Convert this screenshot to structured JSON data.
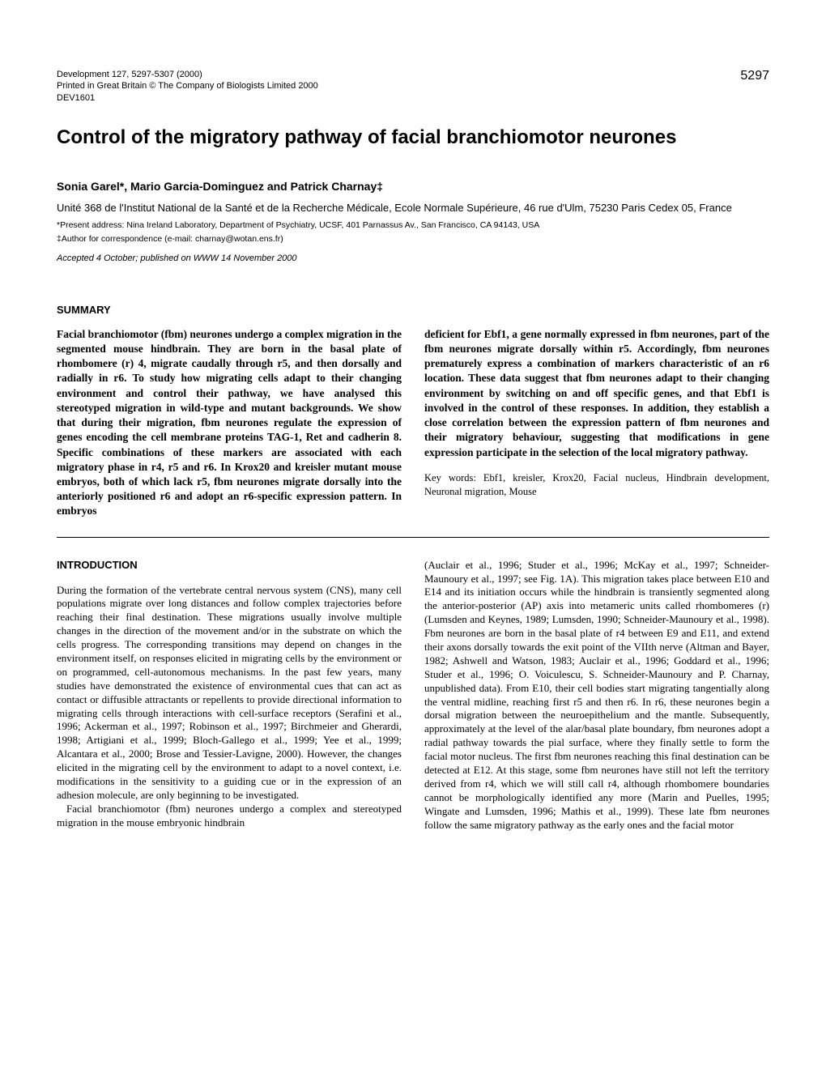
{
  "meta": {
    "citation": "Development 127, 5297-5307 (2000)",
    "printed": "Printed in Great Britain © The Company of Biologists Limited 2000",
    "devcode": "DEV1601",
    "page_number": "5297"
  },
  "title": "Control of the migratory pathway of facial branchiomotor neurones",
  "authors": "Sonia Garel*, Mario Garcia-Dominguez and Patrick Charnay‡",
  "affiliation": "Unité 368 de l'Institut National de la Santé et de la Recherche Médicale, Ecole Normale Supérieure, 46 rue d'Ulm, 75230 Paris Cedex 05, France",
  "footnote1": "*Present address: Nina Ireland Laboratory, Department of Psychiatry, UCSF, 401 Parnassus Av., San Francisco, CA 94143, USA",
  "footnote2": "‡Author for correspondence (e-mail: charnay@wotan.ens.fr)",
  "accepted": "Accepted 4 October; published on WWW 14 November 2000",
  "summary": {
    "heading": "SUMMARY",
    "left": "Facial branchiomotor (fbm) neurones undergo a complex migration in the segmented mouse hindbrain. They are born in the basal plate of rhombomere (r) 4, migrate caudally through r5, and then dorsally and radially in r6. To study how migrating cells adapt to their changing environment and control their pathway, we have analysed this stereotyped migration in wild-type and mutant backgrounds. We show that during their migration, fbm neurones regulate the expression of genes encoding the cell membrane proteins TAG-1, Ret and cadherin 8. Specific combinations of these markers are associated with each migratory phase in r4, r5 and r6. In Krox20 and kreisler mutant mouse embryos, both of which lack r5, fbm neurones migrate dorsally into the anteriorly positioned r6 and adopt an r6-specific expression pattern. In embryos",
    "right": "deficient for Ebf1, a gene normally expressed in fbm neurones, part of the fbm neurones migrate dorsally within r5. Accordingly, fbm neurones prematurely express a combination of markers characteristic of an r6 location. These data suggest that fbm neurones adapt to their changing environment by switching on and off specific genes, and that Ebf1 is involved in the control of these responses. In addition, they establish a close correlation between the expression pattern of fbm neurones and their migratory behaviour, suggesting that modifications in gene expression participate in the selection of the local migratory pathway.",
    "keywords": "Key words: Ebf1, kreisler, Krox20, Facial nucleus, Hindbrain development, Neuronal migration, Mouse"
  },
  "intro": {
    "heading": "INTRODUCTION",
    "left_p1": "During the formation of the vertebrate central nervous system (CNS), many cell populations migrate over long distances and follow complex trajectories before reaching their final destination. These migrations usually involve multiple changes in the direction of the movement and/or in the substrate on which the cells progress. The corresponding transitions may depend on changes in the environment itself, on responses elicited in migrating cells by the environment or on programmed, cell-autonomous mechanisms. In the past few years, many studies have demonstrated the existence of environmental cues that can act as contact or diffusible attractants or repellents to provide directional information to migrating cells through interactions with cell-surface receptors (Serafini et al., 1996; Ackerman et al., 1997; Robinson et al., 1997; Birchmeier and Gherardi, 1998; Artigiani et al., 1999; Bloch-Gallego et al., 1999; Yee et al., 1999; Alcantara et al., 2000; Brose and Tessier-Lavigne, 2000). However, the changes elicited in the migrating cell by the environment to adapt to a novel context, i.e. modifications in the sensitivity to a guiding cue or in the expression of an adhesion molecule, are only beginning to be investigated.",
    "left_p2": "Facial branchiomotor (fbm) neurones undergo a complex and stereotyped migration in the mouse embryonic hindbrain",
    "right": "(Auclair et al., 1996; Studer et al., 1996; McKay et al., 1997; Schneider-Maunoury et al., 1997; see Fig. 1A). This migration takes place between E10 and E14 and its initiation occurs while the hindbrain is transiently segmented along the anterior-posterior (AP) axis into metameric units called rhombomeres (r) (Lumsden and Keynes, 1989; Lumsden, 1990; Schneider-Maunoury et al., 1998). Fbm neurones are born in the basal plate of r4 between E9 and E11, and extend their axons dorsally towards the exit point of the VIIth nerve (Altman and Bayer, 1982; Ashwell and Watson, 1983; Auclair et al., 1996; Goddard et al., 1996; Studer et al., 1996; O. Voiculescu, S. Schneider-Maunoury and P. Charnay, unpublished data). From E10, their cell bodies start migrating tangentially along the ventral midline, reaching first r5 and then r6. In r6, these neurones begin a dorsal migration between the neuroepithelium and the mantle. Subsequently, approximately at the level of the alar/basal plate boundary, fbm neurones adopt a radial pathway towards the pial surface, where they finally settle to form the facial motor nucleus. The first fbm neurones reaching this final destination can be detected at E12. At this stage, some fbm neurones have still not left the territory derived from r4, which we will still call r4, although rhombomere boundaries cannot be morphologically identified any more (Marin and Puelles, 1995; Wingate and Lumsden, 1996; Mathis et al., 1999). These late fbm neurones follow the same migratory pathway as the early ones and the facial motor"
  }
}
